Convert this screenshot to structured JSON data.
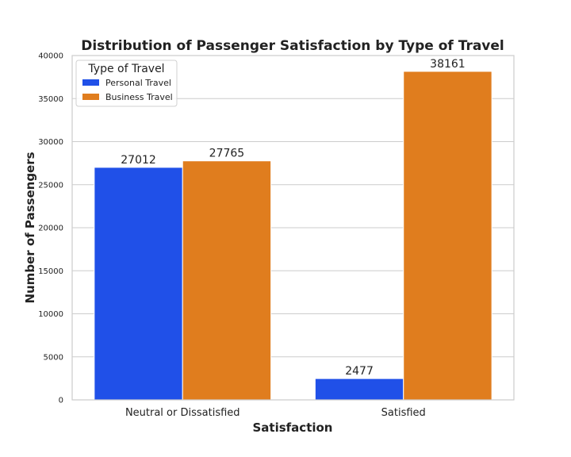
{
  "chart_data": {
    "type": "bar",
    "title": "Distribution of Passenger Satisfaction by Type of Travel",
    "xlabel": "Satisfaction",
    "ylabel": "Number of Passengers",
    "categories": [
      "Neutral or Dissatisfied",
      "Satisfied"
    ],
    "series": [
      {
        "name": "Personal Travel",
        "values": [
          27012,
          2477
        ],
        "color": "#2050e8"
      },
      {
        "name": "Business Travel",
        "values": [
          27765,
          38161
        ],
        "color": "#e07d1e"
      }
    ],
    "ylim": [
      0,
      40000
    ],
    "yticks": [
      0,
      5000,
      10000,
      15000,
      20000,
      25000,
      30000,
      35000,
      40000
    ],
    "grid": true,
    "legend": {
      "title": "Type of Travel",
      "placement": "top-left"
    },
    "data_labels": true
  }
}
